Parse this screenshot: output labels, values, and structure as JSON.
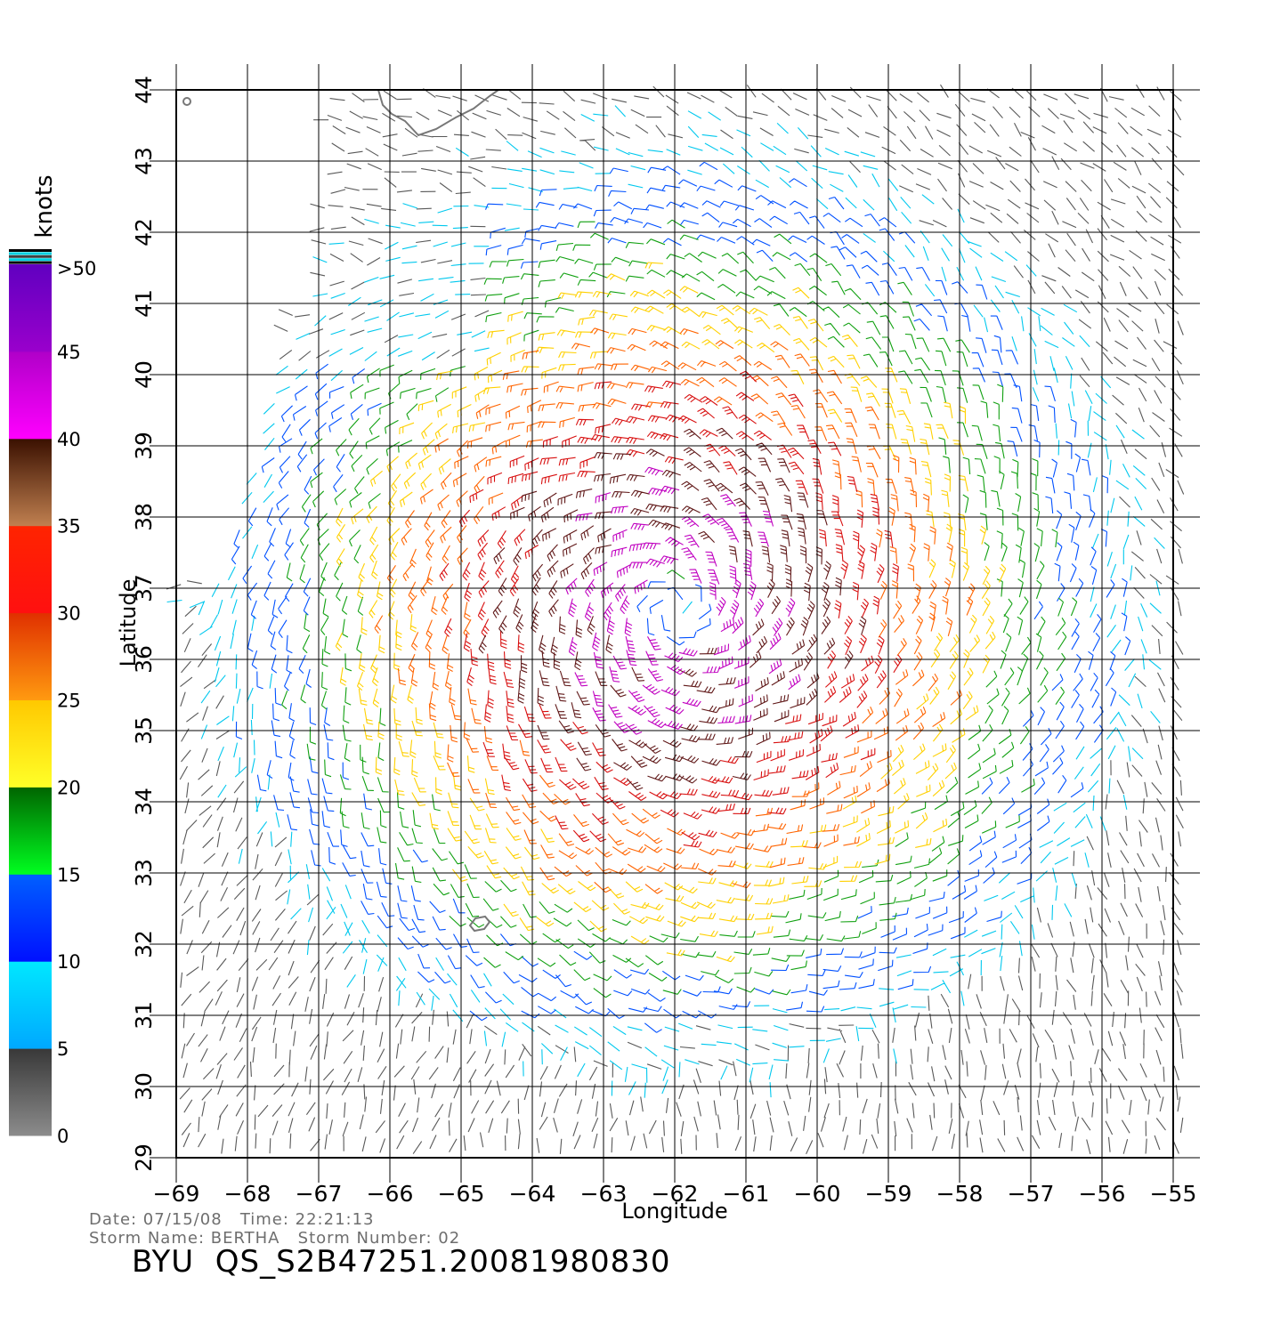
{
  "map": {
    "units_label": "knots",
    "xlabel": "Longitude",
    "ylabel": "Latitude",
    "lon_ticks": [
      -69,
      -68,
      -67,
      -66,
      -65,
      -64,
      -63,
      -62,
      -61,
      -60,
      -59,
      -58,
      -57,
      -56,
      -55
    ],
    "lat_ticks": [
      29,
      30,
      31,
      32,
      33,
      34,
      35,
      36,
      37,
      38,
      39,
      40,
      41,
      42,
      43,
      44
    ],
    "lon_range": [
      -69,
      -55
    ],
    "lat_range": [
      29,
      44
    ],
    "storm_center": {
      "lon": -62.0,
      "lat": 36.7
    },
    "colorbar": {
      "labels": [
        ">50",
        "45",
        "40",
        "35",
        "30",
        "25",
        "20",
        "15",
        "10",
        "5",
        "0"
      ],
      "bands": [
        {
          "min": 0,
          "max": 5,
          "top": "#383838",
          "bottom": "#8c8c8c"
        },
        {
          "min": 5,
          "max": 10,
          "top": "#00e8ff",
          "bottom": "#00a8ff"
        },
        {
          "min": 10,
          "max": 15,
          "top": "#0060ff",
          "bottom": "#0010ff"
        },
        {
          "min": 15,
          "max": 20,
          "top": "#006400",
          "bottom": "#00ff20"
        },
        {
          "min": 20,
          "max": 25,
          "top": "#ffc800",
          "bottom": "#ffff28"
        },
        {
          "min": 25,
          "max": 30,
          "top": "#e03000",
          "bottom": "#ff9a10"
        },
        {
          "min": 30,
          "max": 35,
          "top": "#ff2400",
          "bottom": "#ff1010"
        },
        {
          "min": 35,
          "max": 40,
          "top": "#3a1000",
          "bottom": "#c08050"
        },
        {
          "min": 40,
          "max": 45,
          "top": "#b000c8",
          "bottom": "#ff00ff"
        },
        {
          "min": 45,
          "max": 50,
          "top": "#6000c0",
          "bottom": "#9a00cc"
        }
      ]
    },
    "speed_colors": [
      "#585858",
      "#00c8ee",
      "#0050ff",
      "#10a010",
      "#ffd000",
      "#ff6400",
      "#d81010",
      "#601818",
      "#c000c0",
      "#6010c0"
    ]
  },
  "footer": {
    "date_line": "Date: 07/15/08   Time: 22:21:13",
    "storm_line": "Storm Name: BERTHA   Storm Number: 02",
    "title": "BYU  QS_S2B47251.20081980830"
  }
}
